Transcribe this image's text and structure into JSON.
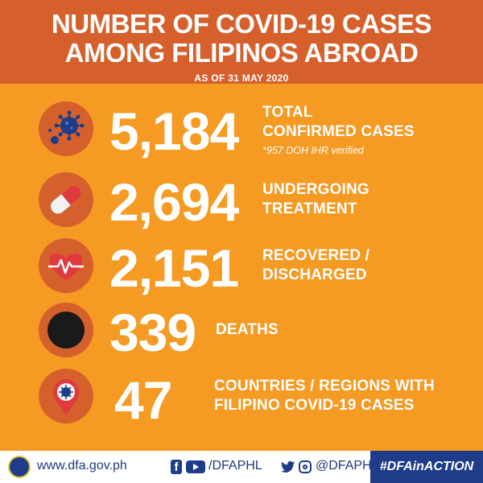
{
  "header": {
    "title_line1": "NUMBER OF COVID-19 CASES",
    "title_line2": "AMONG FILIPINOS ABROAD",
    "date": "AS OF 31 MAY 2020"
  },
  "stats": [
    {
      "value": "5,184",
      "label_line1": "TOTAL",
      "label_line2": "CONFIRMED CASES",
      "note": "*957 DOH IHR verified",
      "icon": "virus-icon"
    },
    {
      "value": "2,694",
      "label_line1": "UNDERGOING",
      "label_line2": "TREATMENT",
      "icon": "pill-icon"
    },
    {
      "value": "2,151",
      "label_line1": "RECOVERED /",
      "label_line2": "DISCHARGED",
      "icon": "heartbeat-icon"
    },
    {
      "value": "339",
      "label_line1": "DEATHS",
      "icon": "black-circle-icon"
    },
    {
      "value": "47",
      "label_line1": "COUNTRIES / REGIONS WITH",
      "label_line2": "FILIPINO COVID-19 CASES",
      "icon": "map-pin-virus-icon"
    }
  ],
  "footer": {
    "website": "www.dfa.gov.ph",
    "facebook_youtube_handle": "/DFAPHL",
    "twitter_instagram_handle": "@DFAPHL",
    "hashtag": "#DFAinACTION"
  },
  "colors": {
    "background": "#f59a23",
    "accent": "#d5602c",
    "footer_blue": "#1f3c88"
  }
}
